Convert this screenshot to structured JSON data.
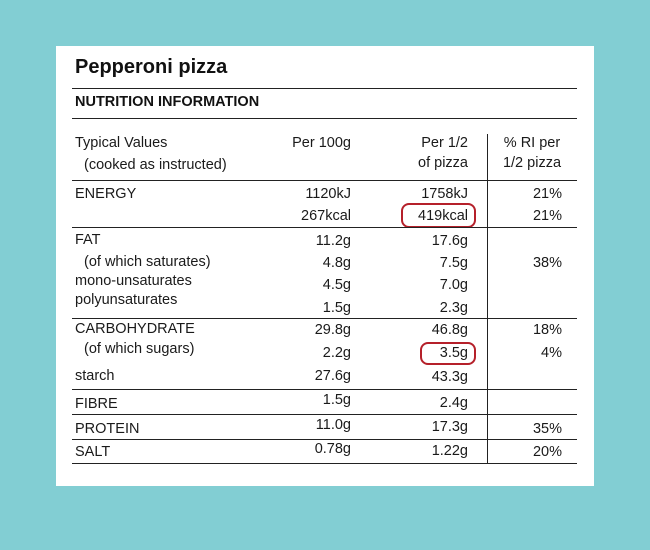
{
  "label": {
    "title": "Pepperoni pizza",
    "heading": "NUTRITION INFORMATION",
    "columns": {
      "typical_line1": "Typical Values",
      "typical_line2": "(cooked as instructed)",
      "per100g": "Per 100g",
      "perhalf_line1": "Per 1/2",
      "perhalf_line2": "of pizza",
      "ri_line1": "% RI per",
      "ri_line2": "1/2 pizza"
    },
    "rows": {
      "energy": {
        "name": "ENERGY",
        "kj_100": "1120kJ",
        "kj_half": "1758kJ",
        "kj_ri": "21%",
        "kcal_100": "267kcal",
        "kcal_half": "419kcal",
        "kcal_ri": "21%"
      },
      "fat": {
        "name": "FAT",
        "v100": "11.2g",
        "vhalf": "17.6g"
      },
      "saturates": {
        "name": "(of which saturates)",
        "v100": "4.8g",
        "vhalf": "7.5g",
        "ri": "38%"
      },
      "mono": {
        "name": "mono-unsaturates",
        "v100": "4.5g",
        "vhalf": "7.0g"
      },
      "poly": {
        "name": "polyunsaturates",
        "v100": "1.5g",
        "vhalf": "2.3g"
      },
      "carbohydrate": {
        "name": "CARBOHYDRATE",
        "v100": "29.8g",
        "vhalf": "46.8g",
        "ri": "18%"
      },
      "sugars": {
        "name": "(of which sugars)",
        "v100": "2.2g",
        "vhalf": "3.5g",
        "ri": "4%"
      },
      "starch": {
        "name": "starch",
        "v100": "27.6g",
        "vhalf": "43.3g"
      },
      "fibre": {
        "name": "FIBRE",
        "v100": "1.5g",
        "vhalf": "2.4g"
      },
      "protein": {
        "name": "PROTEIN",
        "v100": "11.0g",
        "vhalf": "17.3g",
        "ri": "35%"
      },
      "salt": {
        "name": "SALT",
        "v100": "0.78g",
        "vhalf": "1.22g",
        "ri": "20%"
      }
    },
    "colors": {
      "background": "#82ced3",
      "card": "#ffffff",
      "highlight": "#b5202a"
    }
  }
}
